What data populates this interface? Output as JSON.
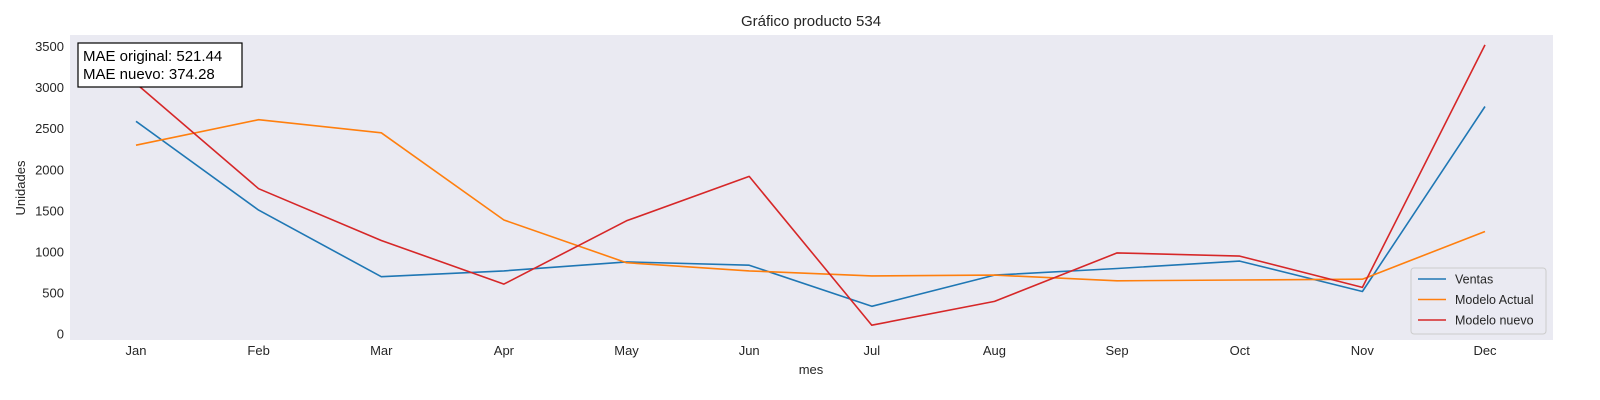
{
  "chart_data": {
    "type": "line",
    "title": "Gráfico producto 534",
    "xlabel": "mes",
    "ylabel": "Unidades",
    "categories": [
      "Jan",
      "Feb",
      "Mar",
      "Apr",
      "May",
      "Jun",
      "Jul",
      "Aug",
      "Sep",
      "Oct",
      "Nov",
      "Dec"
    ],
    "yticks": [
      0,
      500,
      1000,
      1500,
      2000,
      2500,
      3000,
      3500
    ],
    "ylim": [
      -70,
      3640
    ],
    "grid": false,
    "legend_position": "lower-right",
    "background_color": "#eaeaf2",
    "series": [
      {
        "name": "Ventas",
        "color": "#1f77b4",
        "values": [
          2590,
          1510,
          700,
          770,
          880,
          840,
          340,
          720,
          800,
          890,
          520,
          2770
        ]
      },
      {
        "name": "Modelo Actual",
        "color": "#ff7f0e",
        "values": [
          2300,
          2610,
          2450,
          1390,
          870,
          770,
          710,
          720,
          650,
          660,
          670,
          1250
        ]
      },
      {
        "name": "Modelo nuevo",
        "color": "#d62728",
        "values": [
          3050,
          1770,
          1140,
          610,
          1380,
          1920,
          110,
          400,
          990,
          950,
          570,
          3520
        ]
      }
    ],
    "annotation": {
      "lines": [
        "MAE original: 521.44",
        "MAE nuevo: 374.28"
      ]
    }
  }
}
